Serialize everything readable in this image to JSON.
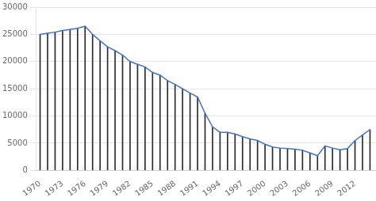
{
  "chart_data": {
    "type": "line",
    "x": [
      1970,
      1971,
      1972,
      1973,
      1974,
      1975,
      1976,
      1977,
      1978,
      1979,
      1980,
      1981,
      1982,
      1983,
      1984,
      1985,
      1986,
      1987,
      1988,
      1989,
      1990,
      1991,
      1992,
      1993,
      1994,
      1995,
      1996,
      1997,
      1998,
      1999,
      2000,
      2001,
      2002,
      2003,
      2004,
      2005,
      2006,
      2007,
      2008,
      2009,
      2010,
      2011,
      2012,
      2013,
      2014
    ],
    "series": [
      {
        "type": "bar",
        "color": "#2B2B2B",
        "values": [
          25000,
          25200,
          25400,
          25700,
          25900,
          26100,
          26500,
          25000,
          23800,
          22700,
          22000,
          21200,
          20000,
          19500,
          19000,
          18000,
          17500,
          16500,
          15800,
          15000,
          14200,
          13500,
          10500,
          8000,
          7000,
          7000,
          6700,
          6200,
          5800,
          5500,
          4800,
          4300,
          4100,
          4000,
          3900,
          3700,
          3200,
          2700,
          4500,
          4100,
          3800,
          4000,
          5500,
          6500,
          7500
        ]
      },
      {
        "type": "line",
        "color": "#4472C4",
        "values": [
          25000,
          25200,
          25400,
          25700,
          25900,
          26100,
          26500,
          25000,
          23800,
          22700,
          22000,
          21200,
          20000,
          19500,
          19000,
          18000,
          17500,
          16500,
          15800,
          15000,
          14200,
          13500,
          10500,
          8000,
          7000,
          7000,
          6700,
          6200,
          5800,
          5500,
          4800,
          4300,
          4100,
          4000,
          3900,
          3700,
          3200,
          2700,
          4500,
          4100,
          3800,
          4000,
          5500,
          6500,
          7500
        ]
      }
    ],
    "xlim": [
      1969.5,
      2014.8
    ],
    "xticks": [
      1970,
      1973,
      1976,
      1979,
      1982,
      1985,
      1988,
      1991,
      1994,
      1997,
      2000,
      2003,
      2006,
      2009,
      2012
    ],
    "ylim": [
      0,
      30000
    ],
    "yticks": [
      0,
      5000,
      10000,
      15000,
      20000,
      25000,
      30000
    ],
    "grid": "y"
  }
}
